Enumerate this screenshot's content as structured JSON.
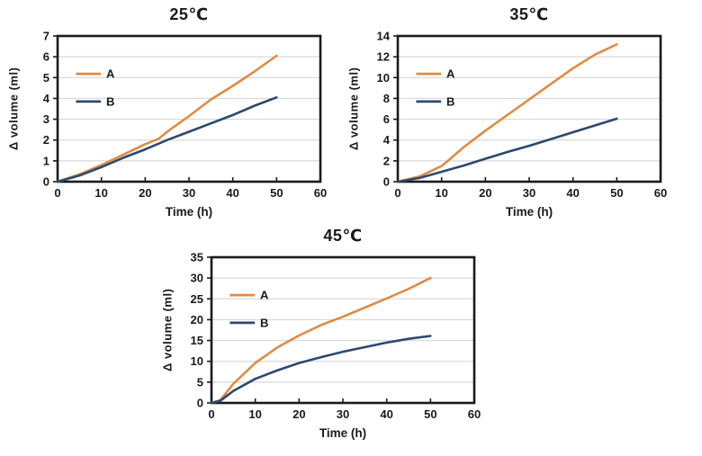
{
  "page": {
    "background": "#FFFFFF"
  },
  "colors": {
    "frame": "#1A1A1A",
    "grid": "#D9D9D9",
    "text": "#1A1A1A",
    "series_a": "#E08B45",
    "series_b": "#2B4A6D"
  },
  "chart_data": [
    {
      "type": "line",
      "title": "25℃",
      "xlabel": "Time (h)",
      "ylabel": "Δ volume (ml)",
      "xlim": [
        0,
        60
      ],
      "ylim": [
        0,
        7
      ],
      "xticks": [
        0,
        10,
        20,
        30,
        40,
        50,
        60
      ],
      "yticks": [
        0,
        1,
        2,
        3,
        4,
        5,
        6,
        7
      ],
      "grid": "horizontal",
      "legend_position": "inside-upper-left",
      "series": [
        {
          "name": "A",
          "color": "#E08B45",
          "x": [
            0,
            5,
            10,
            15,
            20,
            23,
            25,
            30,
            35,
            40,
            45,
            50
          ],
          "y": [
            0,
            0.35,
            0.8,
            1.3,
            1.8,
            2.05,
            2.4,
            3.15,
            3.95,
            4.6,
            5.3,
            6.05
          ]
        },
        {
          "name": "B",
          "color": "#2B4A6D",
          "x": [
            0,
            5,
            10,
            15,
            20,
            25,
            30,
            35,
            40,
            45,
            50
          ],
          "y": [
            0,
            0.3,
            0.7,
            1.15,
            1.55,
            2.0,
            2.4,
            2.8,
            3.2,
            3.65,
            4.05
          ]
        }
      ]
    },
    {
      "type": "line",
      "title": "35℃",
      "xlabel": "Time (h)",
      "ylabel": "Δ volume (ml)",
      "xlim": [
        0,
        60
      ],
      "ylim": [
        0,
        14
      ],
      "xticks": [
        0,
        10,
        20,
        30,
        40,
        50,
        60
      ],
      "yticks": [
        0,
        2,
        4,
        6,
        8,
        10,
        12,
        14
      ],
      "grid": "horizontal",
      "legend_position": "inside-upper-left",
      "series": [
        {
          "name": "A",
          "color": "#E08B45",
          "x": [
            0,
            5,
            10,
            12,
            15,
            20,
            25,
            30,
            35,
            40,
            45,
            50
          ],
          "y": [
            0,
            0.5,
            1.5,
            2.2,
            3.3,
            4.9,
            6.4,
            7.9,
            9.4,
            10.9,
            12.2,
            13.2
          ]
        },
        {
          "name": "B",
          "color": "#2B4A6D",
          "x": [
            0,
            5,
            10,
            15,
            20,
            25,
            30,
            35,
            40,
            45,
            50
          ],
          "y": [
            0,
            0.35,
            0.95,
            1.55,
            2.2,
            2.85,
            3.45,
            4.1,
            4.75,
            5.4,
            6.05
          ]
        }
      ]
    },
    {
      "type": "line",
      "title": "45℃",
      "xlabel": "Time (h)",
      "ylabel": "Δ volume (ml)",
      "xlim": [
        0,
        60
      ],
      "ylim": [
        0,
        35
      ],
      "xticks": [
        0,
        10,
        20,
        30,
        40,
        50,
        60
      ],
      "yticks": [
        0,
        5,
        10,
        15,
        20,
        25,
        30,
        35
      ],
      "grid": "horizontal",
      "legend_position": "inside-upper-left",
      "series": [
        {
          "name": "A",
          "color": "#E08B45",
          "x": [
            0,
            2,
            5,
            10,
            15,
            20,
            25,
            30,
            35,
            40,
            45,
            50
          ],
          "y": [
            0,
            0.7,
            4.6,
            9.6,
            13.3,
            16.2,
            18.7,
            20.7,
            22.9,
            25.1,
            27.4,
            30.0
          ]
        },
        {
          "name": "B",
          "color": "#2B4A6D",
          "x": [
            0,
            2,
            5,
            10,
            15,
            20,
            25,
            30,
            35,
            40,
            45,
            50
          ],
          "y": [
            0,
            0.5,
            2.9,
            5.8,
            7.8,
            9.6,
            11.0,
            12.3,
            13.4,
            14.5,
            15.4,
            16.1
          ]
        }
      ]
    }
  ]
}
